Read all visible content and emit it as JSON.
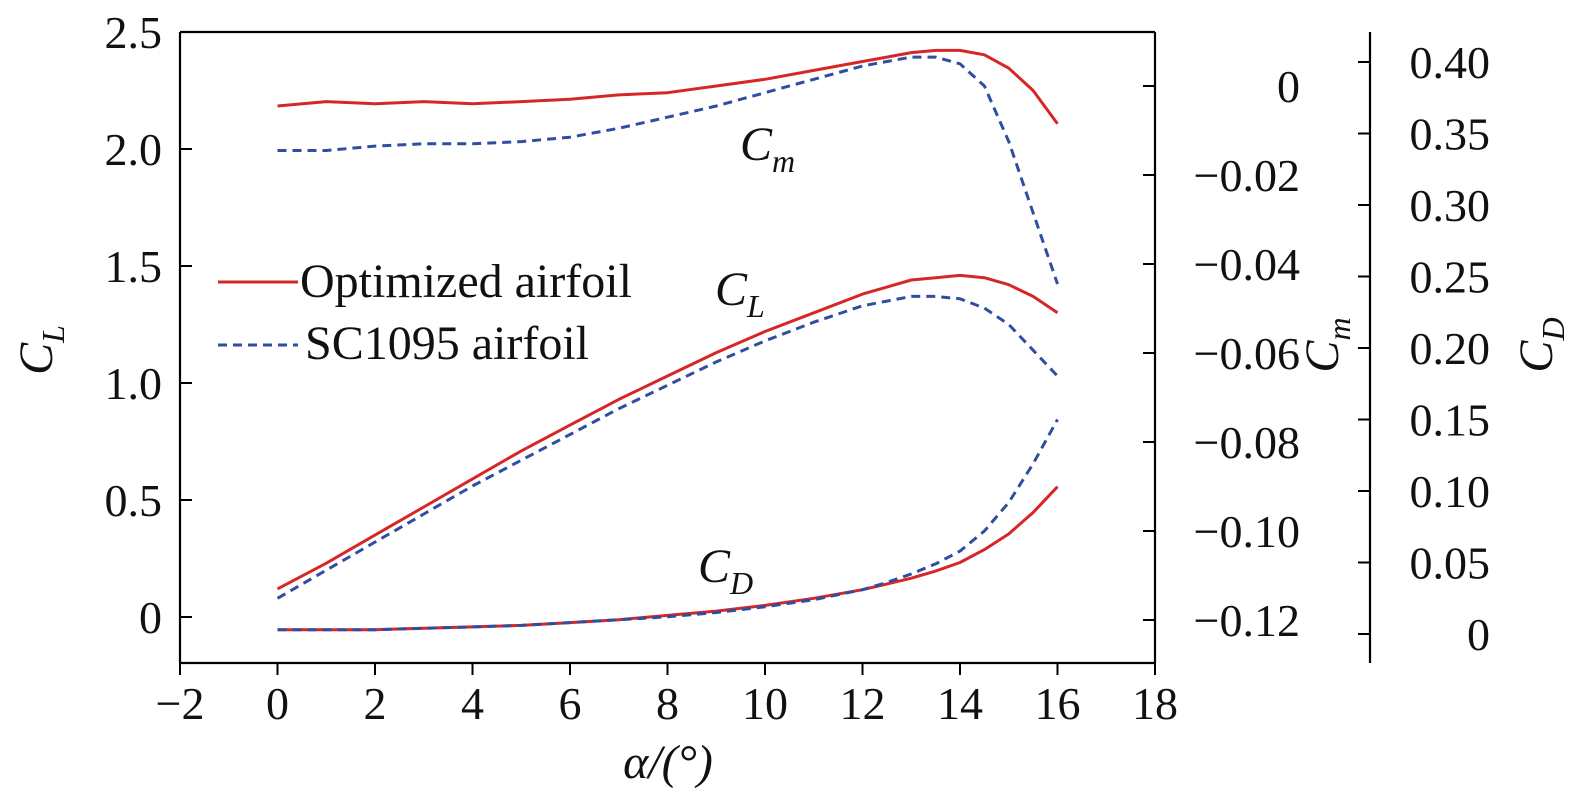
{
  "chart_data": {
    "type": "line",
    "x": [
      0,
      1,
      2,
      3,
      4,
      5,
      6,
      7,
      8,
      9,
      10,
      11,
      12,
      12.5,
      13,
      13.5,
      14,
      14.5,
      15,
      15.5,
      16
    ],
    "xlabel": "α/(°)",
    "xlim": [
      -2,
      18
    ],
    "xticks": [
      "−2",
      "0",
      "2",
      "4",
      "6",
      "8",
      "10",
      "12",
      "14",
      "16",
      "18"
    ],
    "colors": {
      "optimized": "#d62728",
      "sc1095": "#2f4ea1"
    },
    "axes": {
      "cl": {
        "label_main": "C",
        "label_sub": "L",
        "position": "left",
        "ylim": [
          -0.2,
          2.5
        ],
        "ticks": [
          0,
          0.5,
          1.0,
          1.5,
          2.0,
          2.5
        ],
        "tick_labels": [
          "0",
          "0.5",
          "1.0",
          "1.5",
          "2.0",
          "2.5"
        ]
      },
      "cm": {
        "label_main": "C",
        "label_sub": "m",
        "position": "right",
        "ylim": [
          -0.128,
          0.012
        ],
        "ticks": [
          0,
          -0.02,
          -0.04,
          -0.06,
          -0.08,
          -0.1,
          -0.12
        ],
        "tick_labels": [
          "0",
          "−0.02",
          "−0.04",
          "−0.06",
          "−0.08",
          "−0.10",
          "−0.12"
        ]
      },
      "cd": {
        "label_main": "C",
        "label_sub": "D",
        "position": "right-outer",
        "ylim": [
          0,
          0.42
        ],
        "ticks": [
          0,
          0.05,
          0.1,
          0.15,
          0.2,
          0.25,
          0.3,
          0.35,
          0.4
        ],
        "tick_labels": [
          "0",
          "0.05",
          "0.10",
          "0.15",
          "0.20",
          "0.25",
          "0.30",
          "0.35",
          "0.40"
        ]
      }
    },
    "series": [
      {
        "name": "Optimized airfoil C_L",
        "group": "CL",
        "axis": "cl",
        "style": "solid",
        "color_key": "optimized",
        "values": [
          0.12,
          0.23,
          0.35,
          0.47,
          0.59,
          0.71,
          0.82,
          0.93,
          1.03,
          1.13,
          1.22,
          1.3,
          1.38,
          1.41,
          1.44,
          1.45,
          1.46,
          1.45,
          1.42,
          1.37,
          1.3
        ]
      },
      {
        "name": "SC1095 airfoil C_L",
        "group": "CL",
        "axis": "cl",
        "style": "dashed",
        "color_key": "sc1095",
        "values": [
          0.08,
          0.2,
          0.32,
          0.44,
          0.56,
          0.67,
          0.78,
          0.89,
          0.99,
          1.09,
          1.18,
          1.26,
          1.33,
          1.35,
          1.37,
          1.37,
          1.36,
          1.32,
          1.25,
          1.14,
          1.03
        ]
      },
      {
        "name": "Optimized airfoil C_m",
        "group": "Cm",
        "axis": "cm",
        "style": "solid",
        "color_key": "optimized",
        "values": [
          -0.0045,
          -0.0035,
          -0.004,
          -0.0035,
          -0.004,
          -0.0035,
          -0.003,
          -0.002,
          -0.0015,
          0.0,
          0.0015,
          0.0035,
          0.0055,
          0.0065,
          0.0075,
          0.008,
          0.008,
          0.007,
          0.004,
          -0.001,
          -0.0085
        ]
      },
      {
        "name": "SC1095 airfoil C_m",
        "group": "Cm",
        "axis": "cm",
        "style": "dashed",
        "color_key": "sc1095",
        "values": [
          -0.0145,
          -0.0145,
          -0.0135,
          -0.013,
          -0.013,
          -0.0125,
          -0.0115,
          -0.0095,
          -0.007,
          -0.0045,
          -0.0015,
          0.0015,
          0.0045,
          0.0055,
          0.0065,
          0.0065,
          0.005,
          0.0,
          -0.0125,
          -0.0285,
          -0.0445
        ]
      },
      {
        "name": "Optimized airfoil C_D",
        "group": "CD",
        "axis": "cd",
        "style": "solid",
        "color_key": "optimized",
        "values": [
          0.003,
          0.003,
          0.003,
          0.004,
          0.005,
          0.006,
          0.008,
          0.01,
          0.013,
          0.016,
          0.02,
          0.025,
          0.031,
          0.035,
          0.039,
          0.044,
          0.05,
          0.059,
          0.07,
          0.085,
          0.103
        ]
      },
      {
        "name": "SC1095 airfoil C_D",
        "group": "CD",
        "axis": "cd",
        "style": "dashed",
        "color_key": "sc1095",
        "values": [
          0.003,
          0.003,
          0.003,
          0.004,
          0.005,
          0.006,
          0.008,
          0.01,
          0.012,
          0.015,
          0.019,
          0.024,
          0.031,
          0.036,
          0.042,
          0.049,
          0.058,
          0.072,
          0.092,
          0.119,
          0.15
        ]
      }
    ],
    "annotations": [
      {
        "main": "C",
        "sub": "m",
        "series_group": "Cm"
      },
      {
        "main": "C",
        "sub": "L",
        "series_group": "CL"
      },
      {
        "main": "C",
        "sub": "D",
        "series_group": "CD"
      }
    ],
    "legend": {
      "placement": "upper-left",
      "entries": [
        {
          "label": "Optimized airfoil",
          "style": "solid",
          "color_key": "optimized"
        },
        {
          "label": "SC1095 airfoil",
          "style": "dashed",
          "color_key": "sc1095"
        }
      ]
    }
  }
}
